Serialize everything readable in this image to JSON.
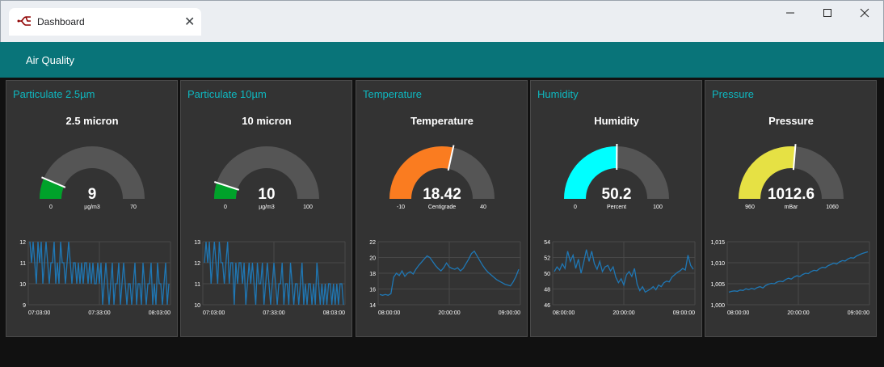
{
  "window": {
    "tab_title": "Dashboard",
    "tab_icon": "node-red-icon",
    "controls": [
      "minimize-icon",
      "maximize-icon",
      "close-icon"
    ]
  },
  "header": {
    "title": "Air Quality",
    "color": "#097479"
  },
  "cards": [
    {
      "title": "Particulate 2.5µm",
      "gauge": {
        "label": "2.5 micron",
        "value": "9",
        "units": "µg/m3",
        "min": "0",
        "max": "70",
        "fraction": 0.1286,
        "color": "#00a22a"
      },
      "chart_data": {
        "type": "line",
        "yticks": [
          "12",
          "11",
          "10",
          "9"
        ],
        "ylim": [
          9,
          12
        ],
        "xticks": [
          "07:03:00",
          "07:33:00",
          "08:03:00"
        ],
        "values": [
          12,
          11,
          12,
          11,
          10,
          12,
          11,
          12,
          10,
          11,
          12,
          11,
          10,
          11,
          11,
          12,
          10,
          11,
          10,
          12,
          11,
          11,
          10,
          11,
          12,
          11,
          10,
          11,
          11,
          10,
          11,
          10,
          11,
          10,
          11,
          11,
          10,
          11,
          10,
          11,
          10,
          10,
          11,
          10,
          11,
          9,
          10,
          11,
          10,
          9,
          10,
          11,
          9,
          10,
          10,
          11,
          9,
          10,
          11,
          10,
          9,
          10,
          10,
          9,
          10,
          11,
          9,
          10,
          10,
          9,
          11,
          10,
          9,
          10,
          10,
          11,
          9,
          10,
          9,
          11,
          10,
          10,
          9,
          10,
          11,
          9,
          10
        ]
      }
    },
    {
      "title": "Particulate 10µm",
      "gauge": {
        "label": "10 micron",
        "value": "10",
        "units": "µg/m3",
        "min": "0",
        "max": "100",
        "fraction": 0.1,
        "color": "#00a22a"
      },
      "chart_data": {
        "type": "line",
        "yticks": [
          "13",
          "12",
          "11",
          "10"
        ],
        "ylim": [
          10,
          13
        ],
        "xticks": [
          "07:03:00",
          "07:33:00",
          "08:03:00"
        ],
        "values": [
          12,
          13,
          12,
          13,
          11,
          12,
          13,
          12,
          11,
          13,
          12,
          12,
          11,
          12,
          13,
          11,
          12,
          12,
          10,
          12,
          11,
          12,
          12,
          11,
          12,
          10,
          11,
          12,
          11,
          12,
          11,
          10,
          12,
          11,
          11,
          12,
          10,
          11,
          12,
          11,
          10,
          11,
          12,
          11,
          10,
          11,
          11,
          12,
          10,
          11,
          11,
          10,
          12,
          11,
          10,
          11,
          11,
          10,
          11,
          12,
          10,
          11,
          10,
          11,
          11,
          10,
          11,
          10,
          12,
          11,
          10,
          11,
          10,
          11,
          10,
          11,
          11,
          10,
          11,
          10,
          11,
          10,
          11,
          11,
          10
        ]
      }
    },
    {
      "title": "Temperature",
      "gauge": {
        "label": "Temperature",
        "value": "18.42",
        "units": "Centigrade",
        "min": "-10",
        "max": "40",
        "fraction": 0.5684,
        "color": "#fa7c20"
      },
      "chart_data": {
        "type": "line",
        "yticks": [
          "22",
          "20",
          "18",
          "16",
          "14"
        ],
        "ylim": [
          14,
          22
        ],
        "xticks": [
          "08:00:00",
          "20:00:00",
          "09:00:00"
        ],
        "values": [
          15.3,
          15.2,
          15.3,
          15.2,
          15.4,
          17.5,
          18.0,
          17.7,
          18.3,
          17.6,
          18.0,
          18.2,
          17.9,
          18.5,
          19.0,
          19.4,
          19.8,
          20.2,
          20.0,
          19.5,
          19.0,
          18.6,
          18.3,
          18.7,
          19.3,
          18.8,
          18.6,
          18.5,
          18.7,
          18.3,
          18.6,
          19.2,
          19.8,
          20.5,
          20.8,
          20.2,
          19.6,
          19.0,
          18.5,
          18.1,
          17.8,
          17.5,
          17.2,
          17.0,
          16.8,
          16.6,
          16.5,
          16.4,
          16.9,
          17.6,
          18.5
        ]
      }
    },
    {
      "title": "Humidity",
      "gauge": {
        "label": "Humidity",
        "value": "50.2",
        "units": "Percent",
        "min": "0",
        "max": "100",
        "fraction": 0.502,
        "color": "#00ffff"
      },
      "chart_data": {
        "type": "line",
        "yticks": [
          "54",
          "52",
          "50",
          "48",
          "46"
        ],
        "ylim": [
          46,
          54
        ],
        "xticks": [
          "08:00:00",
          "20:00:00",
          "09:00:00"
        ],
        "values": [
          50.2,
          50.8,
          50.4,
          51.2,
          50.6,
          52.8,
          51.5,
          52.3,
          50.6,
          51.8,
          50.0,
          51.4,
          53.0,
          51.5,
          52.8,
          51.2,
          50.5,
          51.5,
          50.2,
          50.8,
          51.0,
          50.3,
          50.8,
          49.5,
          48.8,
          49.3,
          48.5,
          49.8,
          50.2,
          49.6,
          50.6,
          48.6,
          47.8,
          48.3,
          47.6,
          47.8,
          48.0,
          48.3,
          47.9,
          48.5,
          48.3,
          48.8,
          49.0,
          48.9,
          49.5,
          49.8,
          50.1,
          50.3,
          50.6,
          50.4,
          52.3,
          51.0,
          50.5
        ]
      }
    },
    {
      "title": "Pressure",
      "gauge": {
        "label": "Pressure",
        "value": "1012.6",
        "units": "mBar",
        "min": "960",
        "max": "1060",
        "fraction": 0.526,
        "color": "#e6e144"
      },
      "chart_data": {
        "type": "line",
        "yticks": [
          "1,015",
          "1,010",
          "1,005",
          "1,000"
        ],
        "ylim": [
          1000,
          1015
        ],
        "xticks": [
          "08:00:00",
          "20:00:00",
          "09:00:00"
        ],
        "values": [
          1003.0,
          1003.2,
          1003.3,
          1003.2,
          1003.5,
          1003.4,
          1003.8,
          1003.6,
          1003.9,
          1003.7,
          1004.1,
          1004.3,
          1004.0,
          1004.6,
          1004.9,
          1005.1,
          1005.0,
          1005.4,
          1005.6,
          1005.5,
          1006.0,
          1006.3,
          1006.1,
          1006.6,
          1006.9,
          1006.7,
          1007.2,
          1007.5,
          1007.4,
          1007.9,
          1008.2,
          1008.1,
          1008.6,
          1008.9,
          1008.8,
          1009.3,
          1009.6,
          1009.9,
          1009.7,
          1010.2,
          1010.5,
          1010.4,
          1010.9,
          1011.2,
          1011.1,
          1011.6,
          1011.9,
          1012.2,
          1012.4,
          1012.6
        ]
      }
    }
  ]
}
